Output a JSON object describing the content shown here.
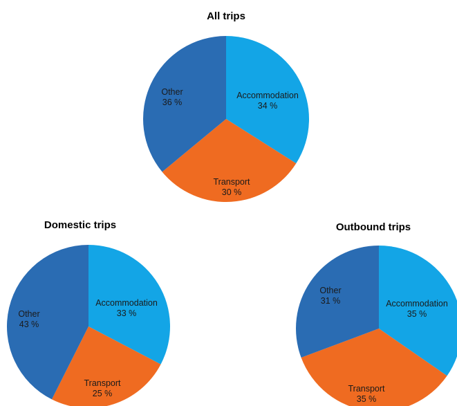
{
  "colors": {
    "Accommodation": "#13a5e6",
    "Transport": "#ef6b21",
    "Other": "#2a6cb3"
  },
  "chart_data": [
    {
      "type": "pie",
      "title": "All trips",
      "slices": [
        {
          "label": "Accommodation",
          "value": 34,
          "value_label": "34 %"
        },
        {
          "label": "Transport",
          "value": 30,
          "value_label": "30 %"
        },
        {
          "label": "Other",
          "value": 36,
          "value_label": "36 %"
        }
      ]
    },
    {
      "type": "pie",
      "title": "Domestic trips",
      "slices": [
        {
          "label": "Accommodation",
          "value": 33,
          "value_label": "33 %"
        },
        {
          "label": "Transport",
          "value": 25,
          "value_label": "25 %"
        },
        {
          "label": "Other",
          "value": 43,
          "value_label": "43 %"
        }
      ]
    },
    {
      "type": "pie",
      "title": "Outbound trips",
      "slices": [
        {
          "label": "Accommodation",
          "value": 35,
          "value_label": "35 %"
        },
        {
          "label": "Transport",
          "value": 35,
          "value_label": "35 %"
        },
        {
          "label": "Other",
          "value": 31,
          "value_label": "31 %"
        }
      ]
    }
  ]
}
